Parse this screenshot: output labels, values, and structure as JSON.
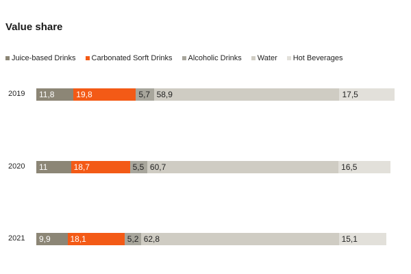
{
  "title": "Value share",
  "colors": {
    "juice": "#8c8676",
    "carbonated": "#f35a16",
    "alcoholic": "#a8a69c",
    "water": "#cfccc3",
    "hot": "#e2e0da"
  },
  "chart_data": {
    "type": "bar",
    "orientation": "horizontal",
    "stacked": true,
    "title": "Value share",
    "categories": [
      "2019",
      "2020",
      "2021"
    ],
    "legend_position": "top",
    "grid": false,
    "series": [
      {
        "name": "Juice-based Drinks",
        "key": "juice",
        "values": [
          11.8,
          11,
          9.9
        ],
        "labels": [
          "11,8",
          "11",
          "9,9"
        ],
        "label_color": "#ffffff"
      },
      {
        "name": "Carbonated Sorft Drinks",
        "key": "carbonated",
        "values": [
          19.8,
          18.7,
          18.1
        ],
        "labels": [
          "19,8",
          "18,7",
          "18,1"
        ],
        "label_color": "#ffffff"
      },
      {
        "name": "Alcoholic Drinks",
        "key": "alcoholic",
        "values": [
          5.7,
          5.5,
          5.2
        ],
        "labels": [
          "5,7",
          "5,5",
          "5,2"
        ],
        "label_color": "#222222"
      },
      {
        "name": "Water",
        "key": "water",
        "values": [
          58.9,
          60.7,
          62.8
        ],
        "labels": [
          "58,9",
          "60,7",
          "62,8"
        ],
        "label_color": "#222222"
      },
      {
        "name": "Hot Beverages",
        "key": "hot",
        "values": [
          17.5,
          16.5,
          15.1
        ],
        "labels": [
          "17,5",
          "16,5",
          "15,1"
        ],
        "label_color": "#222222"
      }
    ]
  }
}
